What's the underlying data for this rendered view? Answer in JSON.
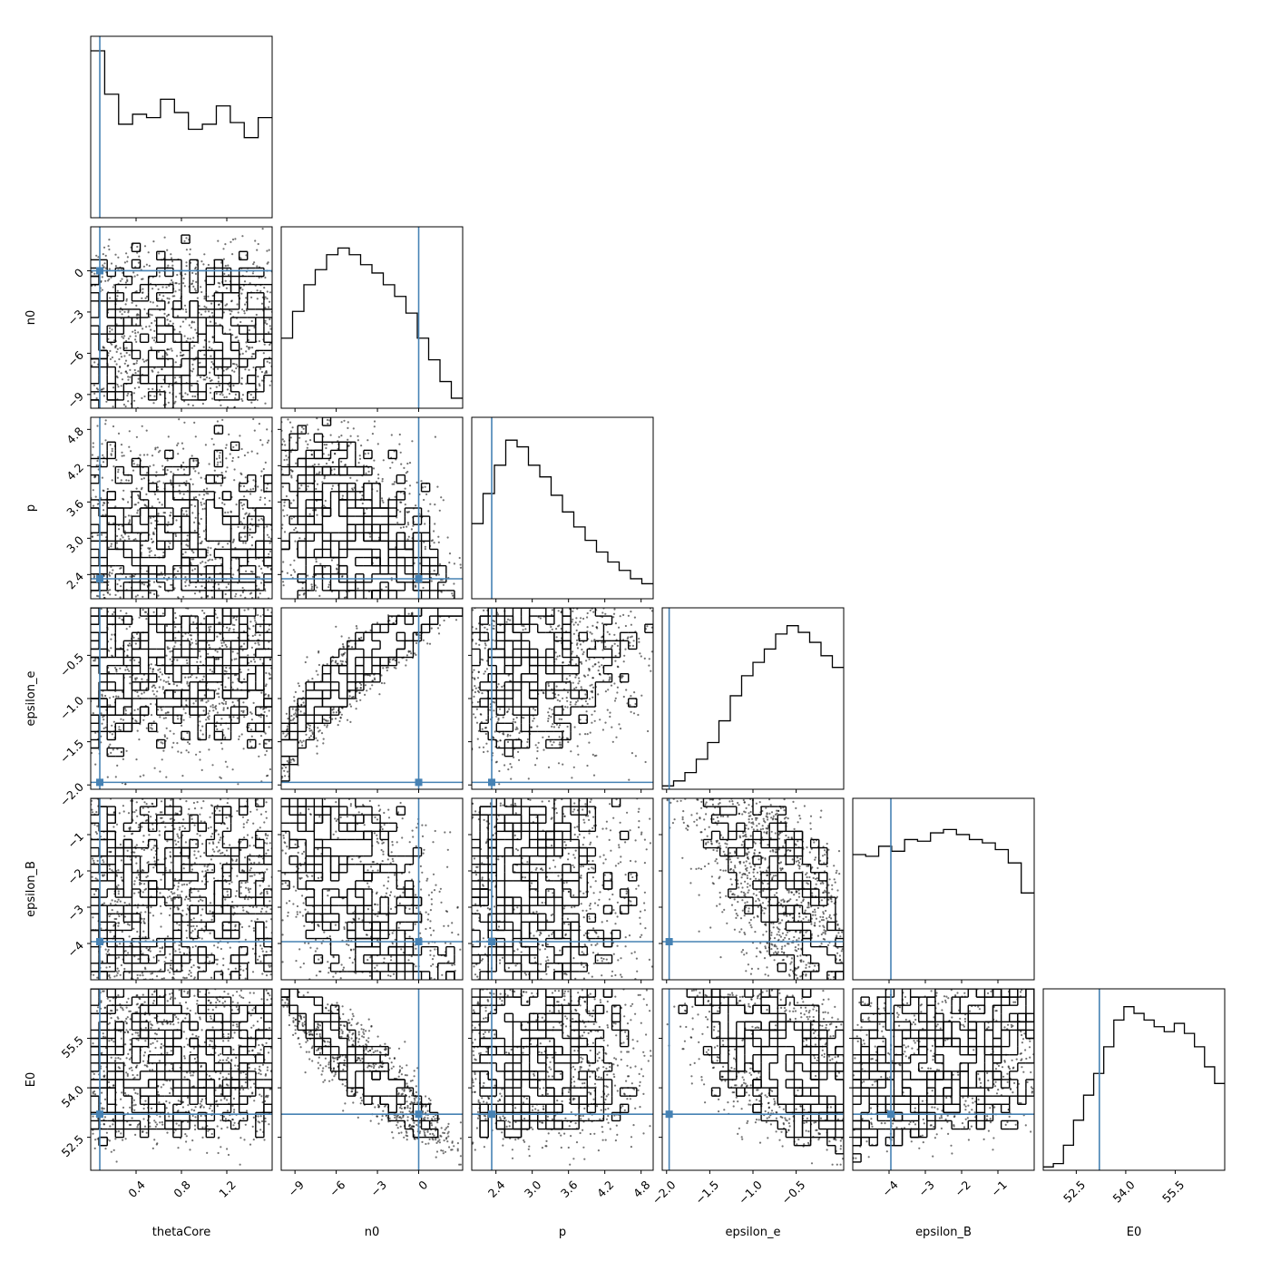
{
  "chart_data": {
    "type": "corner",
    "parameters": [
      "thetaCore",
      "n0",
      "p",
      "epsilon_e",
      "epsilon_B",
      "E0"
    ],
    "ranges": {
      "thetaCore": [
        0.0,
        1.6
      ],
      "n0": [
        -10.0,
        3.2
      ],
      "p": [
        2.0,
        5.0
      ],
      "epsilon_e": [
        -2.05,
        0.05
      ],
      "epsilon_B": [
        -5.0,
        0.0
      ],
      "E0": [
        51.5,
        57.0
      ]
    },
    "ticks": {
      "thetaCore": [
        "0.4",
        "0.8",
        "1.2"
      ],
      "n0": [
        "-9",
        "-6",
        "-3",
        "0"
      ],
      "p": [
        "2.4",
        "3.0",
        "3.6",
        "4.2",
        "4.8"
      ],
      "epsilon_e": [
        "-2.0",
        "-1.5",
        "-1.0",
        "-0.5"
      ],
      "epsilon_B": [
        "-4",
        "-3",
        "-2",
        "-1"
      ],
      "E0": [
        "52.5",
        "54.0",
        "55.5"
      ]
    },
    "truths": {
      "thetaCore": 0.08,
      "n0": 0.0,
      "p": 2.33,
      "epsilon_e": -1.97,
      "epsilon_B": -3.95,
      "E0": 53.2
    },
    "truth_color": "#4682b4",
    "histograms": {
      "thetaCore": [
        1.0,
        0.74,
        0.56,
        0.62,
        0.6,
        0.71,
        0.63,
        0.53,
        0.56,
        0.67,
        0.57,
        0.48,
        0.6
      ],
      "n0": [
        0.42,
        0.58,
        0.74,
        0.83,
        0.92,
        0.96,
        0.92,
        0.86,
        0.81,
        0.74,
        0.67,
        0.57,
        0.42,
        0.29,
        0.16,
        0.06
      ],
      "p": [
        0.45,
        0.63,
        0.8,
        0.95,
        0.91,
        0.8,
        0.73,
        0.62,
        0.52,
        0.43,
        0.35,
        0.28,
        0.22,
        0.17,
        0.12,
        0.09
      ],
      "epsilon_e": [
        0.02,
        0.05,
        0.1,
        0.18,
        0.28,
        0.41,
        0.56,
        0.68,
        0.76,
        0.84,
        0.93,
        0.98,
        0.94,
        0.88,
        0.8,
        0.73
      ],
      "epsilon_B": [
        0.75,
        0.74,
        0.8,
        0.77,
        0.84,
        0.83,
        0.88,
        0.9,
        0.87,
        0.84,
        0.82,
        0.78,
        0.7,
        0.52
      ],
      "E0": [
        0.02,
        0.04,
        0.15,
        0.3,
        0.45,
        0.58,
        0.74,
        0.9,
        0.98,
        0.94,
        0.9,
        0.86,
        0.83,
        0.88,
        0.82,
        0.74,
        0.62,
        0.52
      ]
    },
    "correlations": {
      "n0|thetaCore": 0.0,
      "p|thetaCore": 0.0,
      "p|n0": -0.35,
      "epsilon_e|thetaCore": 0.0,
      "epsilon_e|n0": 0.92,
      "epsilon_e|p": 0.1,
      "epsilon_B|thetaCore": 0.0,
      "epsilon_B|n0": -0.45,
      "epsilon_B|p": 0.0,
      "epsilon_B|epsilon_e": -0.6,
      "E0|thetaCore": 0.0,
      "E0|n0": -0.9,
      "E0|p": 0.0,
      "E0|epsilon_e": -0.45,
      "E0|epsilon_B": 0.4
    },
    "contour_levels": 4
  }
}
